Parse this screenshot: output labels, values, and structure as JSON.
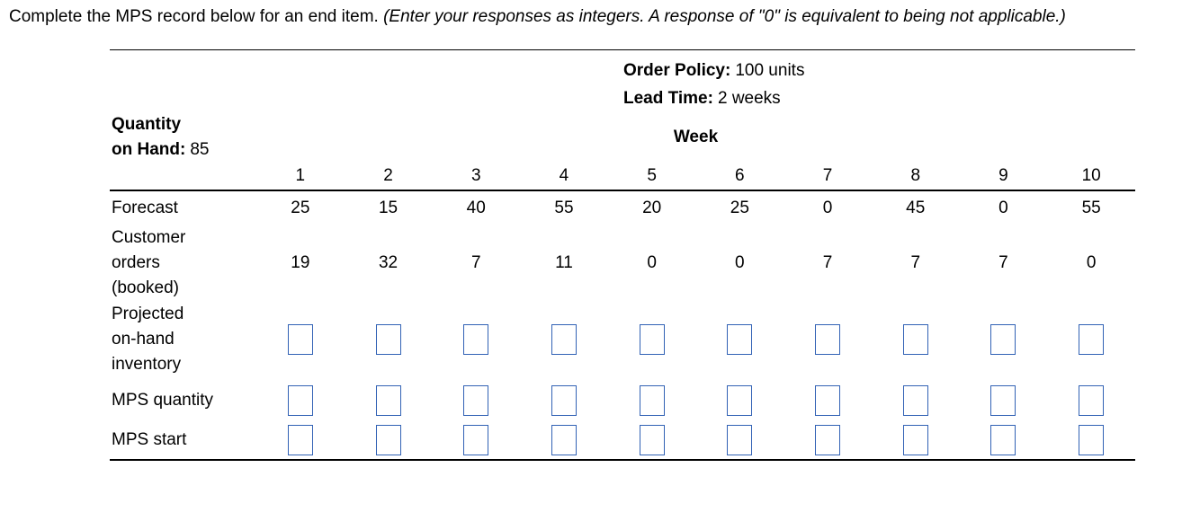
{
  "instruction": {
    "text_normal": "Complete the MPS record below for an end item. ",
    "text_italic": "(Enter your responses as integers. A response of \"0\" is equivalent to being not applicable.)"
  },
  "table": {
    "order_policy": {
      "label": "Order Policy:",
      "value": "100 units"
    },
    "lead_time": {
      "label": "Lead Time:",
      "value": "2 weeks"
    },
    "quantity_on_hand": {
      "label_line1": "Quantity",
      "label_line2": "on Hand:",
      "value": "85"
    },
    "week_header": "Week",
    "week_numbers": [
      "1",
      "2",
      "3",
      "4",
      "5",
      "6",
      "7",
      "8",
      "9",
      "10"
    ],
    "rows": {
      "forecast": {
        "label": "Forecast",
        "values": [
          "25",
          "15",
          "40",
          "55",
          "20",
          "25",
          "0",
          "45",
          "0",
          "55"
        ]
      },
      "customer_orders": {
        "label_lines": [
          "Customer",
          "orders",
          "(booked)"
        ],
        "values": [
          "19",
          "32",
          "7",
          "11",
          "0",
          "0",
          "7",
          "7",
          "7",
          "0"
        ]
      },
      "projected_on_hand": {
        "label_lines": [
          "Projected",
          "on-hand",
          "inventory"
        ]
      },
      "mps_quantity": {
        "label": "MPS quantity"
      },
      "mps_start": {
        "label": "MPS start"
      }
    },
    "input_border_color": "#3262B5",
    "input_current_value": ""
  }
}
